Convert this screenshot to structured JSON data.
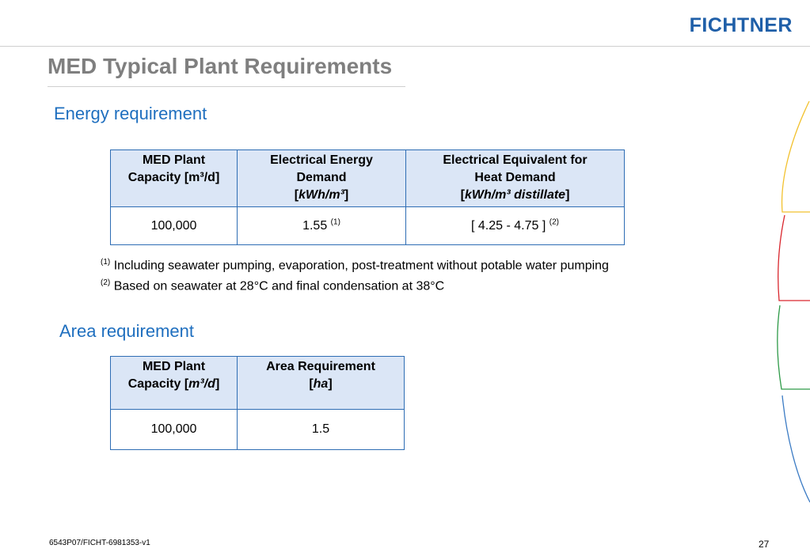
{
  "header": {
    "logo": "FICHTNER"
  },
  "slide": {
    "title": "MED Typical Plant Requirements"
  },
  "energy": {
    "heading": "Energy requirement",
    "headers": [
      {
        "line1": "MED Plant",
        "line2": "Capacity [m³/d]"
      },
      {
        "line1": "Electrical Energy",
        "line2": "Demand",
        "unit": "kWh/m³"
      },
      {
        "line1": "Electrical Equivalent for",
        "line2": "Heat Demand",
        "unit": "kWh/m³ distillate"
      }
    ],
    "row": {
      "capacity": "100,000",
      "electrical": "1.55",
      "electrical_note": "(1)",
      "heat": "[ 4.25 - 4.75 ]",
      "heat_note": "(2)"
    },
    "footnotes": [
      {
        "marker": "(1)",
        "text": "Including seawater pumping, evaporation, post-treatment without potable water pumping"
      },
      {
        "marker": "(2)",
        "text": "Based on seawater at 28°C and final condensation at 38°C"
      }
    ]
  },
  "area": {
    "heading": "Area requirement",
    "headers": [
      {
        "line1": "MED Plant",
        "line2_prefix": "Capacity [",
        "unit": "m³/d",
        "line2_suffix": "]"
      },
      {
        "line1": "Area Requirement",
        "unit": "ha"
      }
    ],
    "row": {
      "capacity": "100,000",
      "area": "1.5"
    }
  },
  "footer": {
    "code": "6543P07/FICHT-6981353-v1",
    "page": "27"
  },
  "colors": {
    "heading": "#1f6fbf",
    "title": "#7f7f7f",
    "table_border": "#2e6db4",
    "header_fill": "#dbe6f6",
    "logo": "#1f5fa8"
  }
}
